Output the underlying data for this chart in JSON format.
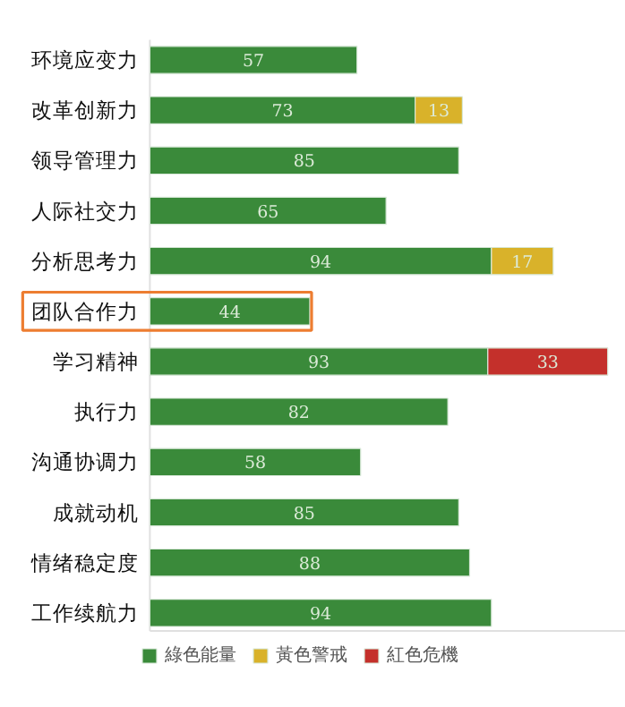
{
  "chart_data": {
    "type": "bar",
    "orientation": "horizontal",
    "stacked": true,
    "data_labels": true,
    "legend": "bottom",
    "grid": false,
    "categories": [
      "环境应变力",
      "改革创新力",
      "领导管理力",
      "人际社交力",
      "分析思考力",
      "团队合作力",
      "学习精神",
      "执行力",
      "沟通协调力",
      "成就动机",
      "情绪稳定度",
      "工作续航力"
    ],
    "series": [
      {
        "name": "綠色能量",
        "color": "#3a8a3a",
        "values": [
          57,
          73,
          85,
          65,
          94,
          44,
          93,
          82,
          58,
          85,
          88,
          94
        ]
      },
      {
        "name": "黃色警戒",
        "color": "#d9b22a",
        "values": [
          null,
          13,
          null,
          null,
          17,
          null,
          null,
          null,
          null,
          null,
          null,
          null
        ]
      },
      {
        "name": "紅色危機",
        "color": "#c4302b",
        "values": [
          null,
          null,
          null,
          null,
          null,
          null,
          33,
          null,
          null,
          null,
          null,
          null
        ]
      }
    ]
  }
}
